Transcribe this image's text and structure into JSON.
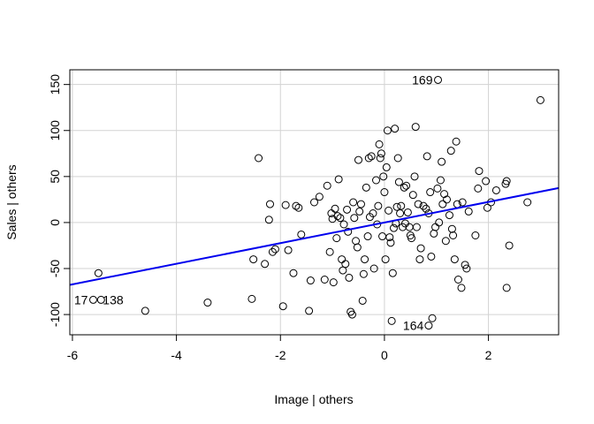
{
  "chart_data": {
    "type": "scatter",
    "title": "",
    "xlabel": "Image | others",
    "ylabel": "Sales  | others",
    "xlim": [
      -6.05,
      3.35
    ],
    "ylim": [
      -122,
      166
    ],
    "x_ticks": [
      -6,
      -4,
      -2,
      0,
      2
    ],
    "y_ticks": [
      -100,
      -50,
      0,
      50,
      100,
      150
    ],
    "x_tick_labels": [
      "-6",
      "-4",
      "-2",
      "0",
      "2"
    ],
    "y_tick_labels": [
      "-100",
      "-50",
      "0",
      "50",
      "100",
      "150"
    ],
    "grid": true,
    "regression_line": {
      "color": "#0000ee",
      "intercept": 0.0,
      "slope": 11.2
    },
    "labeled_points": [
      {
        "label": "169",
        "x": 1.03,
        "y": 155
      },
      {
        "label": "138",
        "x": -5.45,
        "y": -84
      },
      {
        "label": "17",
        "x": -5.6,
        "y": -84
      },
      {
        "label": "164",
        "x": 0.85,
        "y": -112
      }
    ],
    "points": [
      [
        3.0,
        133
      ],
      [
        2.75,
        22
      ],
      [
        2.4,
        -25
      ],
      [
        2.35,
        45
      ],
      [
        2.33,
        42
      ],
      [
        2.35,
        -71
      ],
      [
        2.15,
        35
      ],
      [
        2.05,
        22
      ],
      [
        1.98,
        16
      ],
      [
        1.95,
        45
      ],
      [
        1.82,
        56
      ],
      [
        1.8,
        37
      ],
      [
        1.75,
        -14
      ],
      [
        1.62,
        12
      ],
      [
        1.55,
        -46
      ],
      [
        1.58,
        -50
      ],
      [
        1.5,
        22
      ],
      [
        1.48,
        -71
      ],
      [
        1.42,
        -62
      ],
      [
        1.4,
        20
      ],
      [
        1.38,
        88
      ],
      [
        1.35,
        -40
      ],
      [
        1.32,
        -14
      ],
      [
        1.3,
        -7
      ],
      [
        1.28,
        78
      ],
      [
        1.25,
        8
      ],
      [
        1.2,
        25
      ],
      [
        1.18,
        -20
      ],
      [
        1.15,
        31
      ],
      [
        1.12,
        20
      ],
      [
        1.1,
        66
      ],
      [
        1.08,
        46
      ],
      [
        1.05,
        0
      ],
      [
        1.02,
        37
      ],
      [
        0.98,
        -5
      ],
      [
        0.95,
        -12
      ],
      [
        0.92,
        -104
      ],
      [
        0.9,
        -37
      ],
      [
        0.88,
        33
      ],
      [
        0.85,
        10
      ],
      [
        0.82,
        72
      ],
      [
        0.8,
        15
      ],
      [
        0.75,
        18
      ],
      [
        0.7,
        -28
      ],
      [
        0.68,
        -40
      ],
      [
        0.65,
        20
      ],
      [
        0.62,
        -5
      ],
      [
        0.6,
        104
      ],
      [
        0.58,
        50
      ],
      [
        0.55,
        30
      ],
      [
        0.52,
        -17
      ],
      [
        0.5,
        -14
      ],
      [
        0.48,
        -5
      ],
      [
        0.45,
        11
      ],
      [
        0.42,
        40
      ],
      [
        0.4,
        -1
      ],
      [
        0.38,
        38
      ],
      [
        0.35,
        -5
      ],
      [
        0.32,
        18
      ],
      [
        0.3,
        10
      ],
      [
        0.28,
        44
      ],
      [
        0.26,
        70
      ],
      [
        0.24,
        17
      ],
      [
        0.22,
        -1
      ],
      [
        0.2,
        102
      ],
      [
        0.18,
        -6
      ],
      [
        0.16,
        -55
      ],
      [
        0.14,
        -107
      ],
      [
        0.12,
        -22
      ],
      [
        0.1,
        -16
      ],
      [
        0.08,
        13
      ],
      [
        0.06,
        100
      ],
      [
        0.04,
        60
      ],
      [
        0.02,
        -40
      ],
      [
        0.0,
        33
      ],
      [
        -0.02,
        50
      ],
      [
        -0.04,
        -15
      ],
      [
        -0.06,
        75
      ],
      [
        -0.08,
        70
      ],
      [
        -0.1,
        85
      ],
      [
        -0.12,
        18
      ],
      [
        -0.14,
        -2
      ],
      [
        -0.16,
        46
      ],
      [
        -0.2,
        -50
      ],
      [
        -0.22,
        10
      ],
      [
        -0.25,
        72
      ],
      [
        -0.28,
        6
      ],
      [
        -0.3,
        70
      ],
      [
        -0.32,
        -15
      ],
      [
        -0.35,
        38
      ],
      [
        -0.38,
        -40
      ],
      [
        -0.4,
        -56
      ],
      [
        -0.42,
        -85
      ],
      [
        -0.45,
        20
      ],
      [
        -0.48,
        12
      ],
      [
        -0.5,
        68
      ],
      [
        -0.52,
        -27
      ],
      [
        -0.55,
        -20
      ],
      [
        -0.58,
        5
      ],
      [
        -0.6,
        22
      ],
      [
        -0.62,
        -100
      ],
      [
        -0.65,
        -97
      ],
      [
        -0.68,
        -60
      ],
      [
        -0.7,
        -10
      ],
      [
        -0.72,
        14
      ],
      [
        -0.75,
        -45
      ],
      [
        -0.78,
        -2
      ],
      [
        -0.8,
        -52
      ],
      [
        -0.82,
        -40
      ],
      [
        -0.85,
        5
      ],
      [
        -0.88,
        47
      ],
      [
        -0.9,
        7
      ],
      [
        -0.92,
        -17
      ],
      [
        -0.95,
        15
      ],
      [
        -0.98,
        -65
      ],
      [
        -1.0,
        4
      ],
      [
        -1.02,
        10
      ],
      [
        -1.05,
        -32
      ],
      [
        -1.1,
        40
      ],
      [
        -1.15,
        -62
      ],
      [
        -1.25,
        28
      ],
      [
        -1.35,
        22
      ],
      [
        -1.42,
        -63
      ],
      [
        -1.45,
        -96
      ],
      [
        -1.6,
        -13
      ],
      [
        -1.65,
        16
      ],
      [
        -1.7,
        18
      ],
      [
        -1.75,
        -55
      ],
      [
        -1.85,
        -30
      ],
      [
        -1.9,
        19
      ],
      [
        -1.95,
        -91
      ],
      [
        -2.1,
        -29
      ],
      [
        -2.15,
        -32
      ],
      [
        -2.2,
        20
      ],
      [
        -2.22,
        3
      ],
      [
        -2.3,
        -45
      ],
      [
        -2.42,
        70
      ],
      [
        -2.52,
        -40
      ],
      [
        -2.55,
        -83
      ],
      [
        -3.4,
        -87
      ],
      [
        -4.6,
        -96
      ],
      [
        -5.5,
        -55
      ]
    ]
  }
}
